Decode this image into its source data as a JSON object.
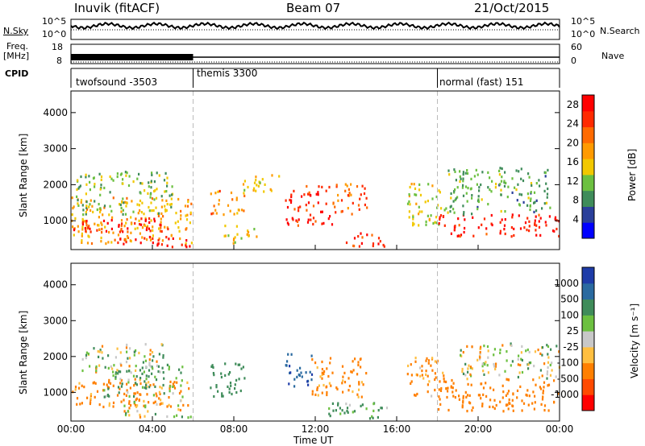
{
  "header": {
    "station": "Inuvik (fitACF)",
    "beam": "Beam 07",
    "date": "21/Oct/2015"
  },
  "noise_panel": {
    "left_label": "N.Sky",
    "left_ticks": [
      "10^5",
      "10^0"
    ],
    "right_ticks": [
      "10^5",
      "10^0"
    ],
    "right_label": "N.Search"
  },
  "freq_panel": {
    "left_label_1": "Freq.",
    "left_label_2": "[MHz]",
    "left_ticks": [
      "18",
      "8"
    ],
    "right_ticks": [
      "60",
      "0"
    ],
    "right_label": "Nave"
  },
  "cpid_panel": {
    "label": "CPID",
    "segments": [
      "twofsound -3503",
      "themis 3300",
      "normal (fast) 151"
    ]
  },
  "colors": {
    "power_scale": [
      "#0000ff",
      "#2a3f9a",
      "#3f8c5a",
      "#6cc040",
      "#f2c800",
      "#ff9a00",
      "#ff6a00",
      "#ff2a00",
      "#ff0000"
    ],
    "velocity_scale": [
      "#ff0000",
      "#ff4a00",
      "#ff7f00",
      "#ffbf40",
      "#c8c8c8",
      "#6cc040",
      "#3f8c5a",
      "#2a6aa0",
      "#1e3ca8"
    ]
  },
  "chart_data": [
    {
      "type": "heatmap",
      "panel": "power",
      "ylabel": "Slant Range [km]",
      "yticks": [
        "1000",
        "2000",
        "3000",
        "4000"
      ],
      "ylim": [
        200,
        4600
      ],
      "xticks": [
        "00:00",
        "04:00",
        "08:00",
        "12:00",
        "16:00",
        "20:00",
        "00:00"
      ],
      "xlim_hours": [
        0,
        24
      ],
      "colorbar_label": "Power [dB]",
      "colorbar_ticks": [
        "28",
        "24",
        "20",
        "16",
        "12",
        "8",
        "4"
      ],
      "colorbar_range": [
        0,
        30
      ],
      "mode_boundaries_hours": [
        6,
        18
      ],
      "echo_regions": [
        {
          "t0": 0.0,
          "t1": 5.9,
          "r0": 400,
          "r1": 1700,
          "v": 18
        },
        {
          "t0": 0.1,
          "t1": 4.8,
          "r0": 700,
          "r1": 1100,
          "v": 28
        },
        {
          "t0": 2.0,
          "t1": 5.9,
          "r0": 300,
          "r1": 600,
          "v": 27
        },
        {
          "t0": 0.2,
          "t1": 5.0,
          "r0": 1200,
          "r1": 2400,
          "v": 12
        },
        {
          "t0": 6.8,
          "t1": 8.5,
          "r0": 1200,
          "r1": 1900,
          "v": 20
        },
        {
          "t0": 7.5,
          "t1": 9.2,
          "r0": 400,
          "r1": 900,
          "v": 16
        },
        {
          "t0": 8.2,
          "t1": 10.2,
          "r0": 1800,
          "r1": 2300,
          "v": 16
        },
        {
          "t0": 10.5,
          "t1": 12.8,
          "r0": 900,
          "r1": 2000,
          "v": 26
        },
        {
          "t0": 12.8,
          "t1": 14.5,
          "r0": 1200,
          "r1": 2100,
          "v": 22
        },
        {
          "t0": 13.5,
          "t1": 15.5,
          "r0": 300,
          "r1": 700,
          "v": 24
        },
        {
          "t0": 16.5,
          "t1": 18.5,
          "r0": 900,
          "r1": 2100,
          "v": 14
        },
        {
          "t0": 18.0,
          "t1": 24.0,
          "r0": 600,
          "r1": 1200,
          "v": 27
        },
        {
          "t0": 18.5,
          "t1": 23.5,
          "r0": 1200,
          "r1": 2500,
          "v": 10
        }
      ]
    },
    {
      "type": "heatmap",
      "panel": "velocity",
      "ylabel": "Slant Range [km]",
      "yticks": [
        "1000",
        "2000",
        "3000",
        "4000"
      ],
      "ylim": [
        200,
        4600
      ],
      "xticks": [
        "00:00",
        "04:00",
        "08:00",
        "12:00",
        "16:00",
        "20:00",
        "00:00"
      ],
      "xaxis_title": "Time UT",
      "colorbar_label": "Velocity [m s⁻¹]",
      "colorbar_ticks": [
        "1000",
        "500",
        "100",
        "25",
        "-25",
        "-100",
        "-500",
        "-1000"
      ],
      "mode_boundaries_hours": [
        6,
        18
      ],
      "echo_regions": [
        {
          "t0": 0.0,
          "t1": 5.9,
          "r0": 600,
          "r1": 1400,
          "v": -200
        },
        {
          "t0": 1.5,
          "t1": 5.5,
          "r0": 900,
          "r1": 1800,
          "v": 150
        },
        {
          "t0": 2.5,
          "t1": 5.9,
          "r0": 300,
          "r1": 800,
          "v": 0
        },
        {
          "t0": 0.5,
          "t1": 4.5,
          "r0": 1600,
          "r1": 2400,
          "v": 0
        },
        {
          "t0": 6.8,
          "t1": 8.5,
          "r0": 900,
          "r1": 1900,
          "v": 300
        },
        {
          "t0": 10.5,
          "t1": 11.8,
          "r0": 1200,
          "r1": 2100,
          "v": 900
        },
        {
          "t0": 11.8,
          "t1": 14.5,
          "r0": 900,
          "r1": 2000,
          "v": -200
        },
        {
          "t0": 12.5,
          "t1": 15.5,
          "r0": 300,
          "r1": 800,
          "v": 150
        },
        {
          "t0": 16.5,
          "t1": 18.5,
          "r0": 900,
          "r1": 2000,
          "v": -150
        },
        {
          "t0": 18.0,
          "t1": 24.0,
          "r0": 500,
          "r1": 1400,
          "v": -300
        },
        {
          "t0": 19.0,
          "t1": 24.0,
          "r0": 1400,
          "r1": 2400,
          "v": 0
        }
      ]
    }
  ]
}
